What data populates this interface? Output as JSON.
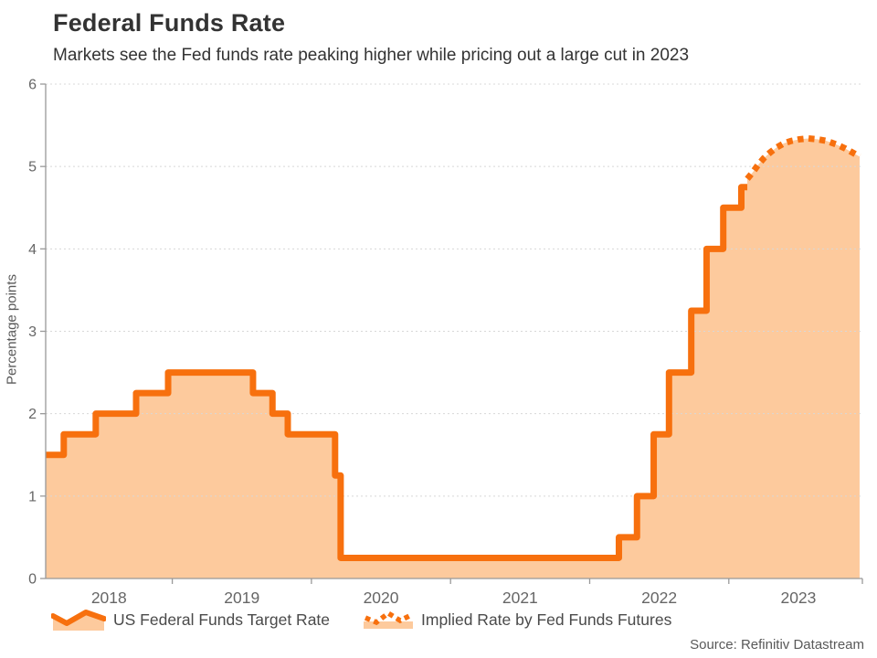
{
  "header": {
    "title": "Federal Funds Rate",
    "subtitle": "Markets see the Fed funds rate peaking higher while pricing out a large cut in 2023"
  },
  "legend": {
    "items": [
      {
        "label": "US Federal Funds Target Rate",
        "style": "solid-area"
      },
      {
        "label": "Implied Rate by Fed Funds Futures",
        "style": "dotted"
      }
    ]
  },
  "source": "Source: Refinitiv Datastream",
  "chart_data": {
    "type": "area",
    "title": "Federal Funds Rate",
    "subtitle": "Markets see the Fed funds rate peaking higher while pricing out a large cut in 2023",
    "ylabel": "Percentage points",
    "ylim": [
      0,
      6
    ],
    "y_ticks": [
      0,
      1,
      2,
      3,
      4,
      5,
      6
    ],
    "x_domain": [
      2018.09,
      2023.96
    ],
    "x_boundary_ticks": [
      2019,
      2020,
      2021,
      2022,
      2023,
      2024
    ],
    "x_labels": [
      {
        "text": "2018",
        "t": 2018.545
      },
      {
        "text": "2019",
        "t": 2019.5
      },
      {
        "text": "2020",
        "t": 2020.5
      },
      {
        "text": "2021",
        "t": 2021.5
      },
      {
        "text": "2022",
        "t": 2022.5
      },
      {
        "text": "2023",
        "t": 2023.5
      }
    ],
    "grid": true,
    "legend_position": "bottom",
    "series": [
      {
        "name": "US Federal Funds Target Rate",
        "type": "step-area",
        "line_style": "solid",
        "points": [
          [
            2018.09,
            1.5
          ],
          [
            2018.22,
            1.75
          ],
          [
            2018.45,
            2.0
          ],
          [
            2018.74,
            2.25
          ],
          [
            2018.97,
            2.5
          ],
          [
            2019.58,
            2.25
          ],
          [
            2019.72,
            2.0
          ],
          [
            2019.83,
            1.75
          ],
          [
            2020.17,
            1.25
          ],
          [
            2020.21,
            0.25
          ],
          [
            2022.21,
            0.5
          ],
          [
            2022.34,
            1.0
          ],
          [
            2022.46,
            1.75
          ],
          [
            2022.57,
            2.5
          ],
          [
            2022.73,
            3.25
          ],
          [
            2022.84,
            4.0
          ],
          [
            2022.96,
            4.5
          ],
          [
            2023.09,
            4.75
          ],
          [
            2023.133,
            4.75
          ]
        ]
      },
      {
        "name": "Implied Rate by Fed Funds Futures",
        "type": "line-area",
        "line_style": "dotted",
        "points": [
          [
            2023.133,
            4.85
          ],
          [
            2023.172,
            4.93
          ],
          [
            2023.211,
            5.02
          ],
          [
            2023.251,
            5.1
          ],
          [
            2023.297,
            5.17
          ],
          [
            2023.343,
            5.23
          ],
          [
            2023.395,
            5.28
          ],
          [
            2023.448,
            5.31
          ],
          [
            2023.507,
            5.33
          ],
          [
            2023.572,
            5.34
          ],
          [
            2023.638,
            5.33
          ],
          [
            2023.704,
            5.31
          ],
          [
            2023.769,
            5.27
          ],
          [
            2023.835,
            5.22
          ],
          [
            2023.888,
            5.17
          ],
          [
            2023.94,
            5.12
          ]
        ]
      }
    ],
    "colors": {
      "line": "#F7700E",
      "fill": "#FDCA9D",
      "grid": "#D8D8D8",
      "axis": "#999999",
      "tick_label": "#666666"
    }
  }
}
